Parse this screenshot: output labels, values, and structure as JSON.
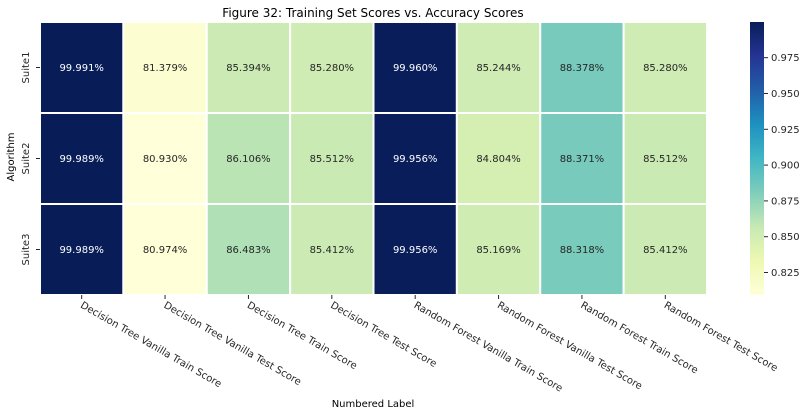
{
  "chart_data": {
    "type": "heatmap",
    "title": "Figure 32: Training Set Scores vs. Accuracy Scores",
    "xlabel": "Numbered Label",
    "ylabel": "Algorithm",
    "rows": [
      "Suite1",
      "Suite2",
      "Suite3"
    ],
    "columns": [
      "Decision Tree Vanilla Train Score",
      "Decision Tree Vanilla Test Score",
      "Decision Tree Train Score",
      "Decision Tree Test Score",
      "Random Forest Vanilla Train Score",
      "Random Forest Vanilla Test Score",
      "Random Forest Train Score",
      "Random Forest Test Score"
    ],
    "values": [
      [
        0.99991,
        0.81379,
        0.85394,
        0.8528,
        0.9996,
        0.85244,
        0.88378,
        0.8528
      ],
      [
        0.99989,
        0.8093,
        0.86106,
        0.85512,
        0.99956,
        0.84804,
        0.88371,
        0.85512
      ],
      [
        0.99989,
        0.80974,
        0.86483,
        0.85412,
        0.99956,
        0.85169,
        0.88318,
        0.85412
      ]
    ],
    "annotations": [
      [
        "99.991%",
        "81.379%",
        "85.394%",
        "85.280%",
        "99.960%",
        "85.244%",
        "88.378%",
        "85.280%"
      ],
      [
        "99.989%",
        "80.930%",
        "86.106%",
        "85.512%",
        "99.956%",
        "84.804%",
        "88.371%",
        "85.512%"
      ],
      [
        "99.989%",
        "80.974%",
        "86.483%",
        "85.412%",
        "99.956%",
        "85.169%",
        "88.318%",
        "85.412%"
      ]
    ],
    "colormap": "YlGnBu",
    "vmin": 0.8093,
    "vmax": 0.99991,
    "colorbar_ticks": [
      "0.975",
      "0.950",
      "0.925",
      "0.900",
      "0.875",
      "0.850",
      "0.825"
    ],
    "colorbar_tick_values": [
      0.975,
      0.95,
      0.925,
      0.9,
      0.875,
      0.85,
      0.825
    ]
  }
}
